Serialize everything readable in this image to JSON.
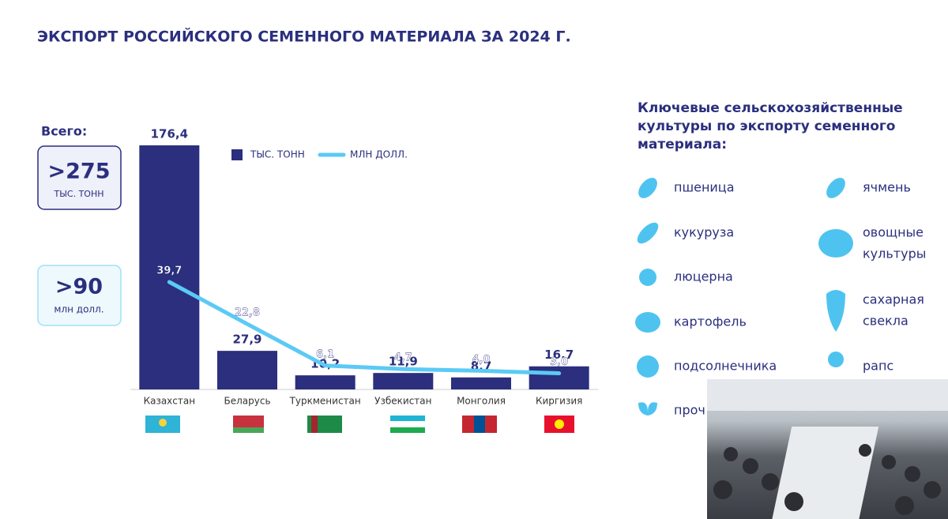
{
  "title": "ЭКСПОРТ РОССИЙСКОГО СЕМЕННОГО МАТЕРИАЛА ЗА 2024 Г.",
  "total": {
    "label": "Всего:",
    "tonnes": ">275",
    "tonnes_unit": "ТЫС. ТОНН",
    "dollars": ">90",
    "dollars_unit": "млн долл."
  },
  "chart_data": {
    "type": "bar",
    "categories": [
      "Казахстан",
      "Беларусь",
      "Туркменистан",
      "Узбекистан",
      "Монголия",
      "Киргизия"
    ],
    "series": [
      {
        "name": "ТЫС. ТОНН",
        "type": "bar",
        "color": "#2b2f7e",
        "values": [
          176.4,
          27.9,
          10.2,
          11.9,
          8.7,
          16.7
        ],
        "value_labels": [
          "176,4",
          "27,9",
          "10,2",
          "11,9",
          "8,7",
          "16,7"
        ]
      },
      {
        "name": "МЛН ДОЛЛ.",
        "type": "line",
        "color": "#5bcaf5",
        "values": [
          39.7,
          22.8,
          6.1,
          4.7,
          4.0,
          3.0
        ],
        "value_labels": [
          "39,7",
          "22,8",
          "6,1",
          "4,7",
          "4,0",
          "3,0"
        ]
      }
    ]
  },
  "crops": {
    "heading": [
      "Ключевые сельскохозяйственные",
      "культуры по экспорту семенного",
      "материала:"
    ],
    "left": [
      "пшеница",
      "кукуруза",
      "люцерна",
      "картофель",
      "подсолнечника",
      "проч"
    ],
    "right": [
      [
        "ячмень"
      ],
      [
        "овощные",
        "культуры"
      ],
      [
        "сахарная",
        "свекла"
      ],
      [
        "рапс"
      ]
    ]
  }
}
